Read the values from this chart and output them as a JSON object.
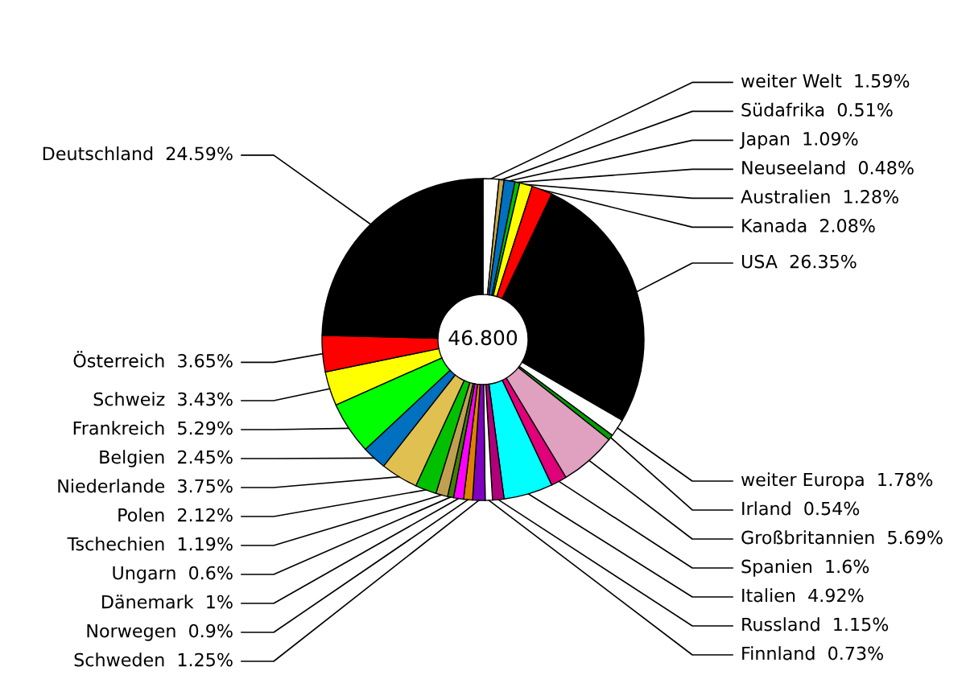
{
  "chart_data": {
    "type": "donut",
    "categories": [
      "weiter Welt",
      "Südafrika",
      "Japan",
      "Neuseeland",
      "Australien",
      "Kanada",
      "USA",
      "weiter Europa",
      "Irland",
      "Großbritannien",
      "Spanien",
      "Italien",
      "Russland",
      "Finnland",
      "Schweden",
      "Norwegen",
      "Dänemark",
      "Ungarn",
      "Tschechien",
      "Polen",
      "Niederlande",
      "Belgien",
      "Frankreich",
      "Schweiz",
      "Österreich",
      "Deutschland"
    ],
    "values": [
      1.59,
      0.51,
      1.09,
      0.48,
      1.28,
      2.08,
      26.35,
      1.78,
      0.54,
      5.69,
      1.6,
      4.92,
      1.15,
      0.73,
      1.25,
      0.9,
      1,
      0.6,
      1.19,
      2.12,
      3.75,
      2.45,
      5.29,
      3.43,
      3.65,
      24.59
    ],
    "value_labels": [
      "1.59%",
      "0.51%",
      "1.09%",
      "0.48%",
      "1.28%",
      "2.08%",
      "26.35%",
      "1.78%",
      "0.54%",
      "5.69%",
      "1.6%",
      "4.92%",
      "1.15%",
      "0.73%",
      "1.25%",
      "0.9%",
      "1%",
      "0.6%",
      "1.19%",
      "2.12%",
      "3.75%",
      "2.45%",
      "5.29%",
      "3.43%",
      "3.65%",
      "24.59%"
    ],
    "colors": [
      "#ffffff",
      "#c8a850",
      "#0070c0",
      "#00c000",
      "#ffff00",
      "#ff0000",
      "#000000",
      "#ffffff",
      "#00a000",
      "#e0a0c0",
      "#e0007a",
      "#00ffff",
      "#b0007a",
      "#ffffff",
      "#8000c0",
      "#e08000",
      "#ff00ff",
      "#408000",
      "#c0a050",
      "#00c000",
      "#e0c050",
      "#0070c0",
      "#00ff00",
      "#ffff00",
      "#ff0000",
      "#000000"
    ],
    "annotations": [
      "46.800"
    ],
    "legend": false
  }
}
